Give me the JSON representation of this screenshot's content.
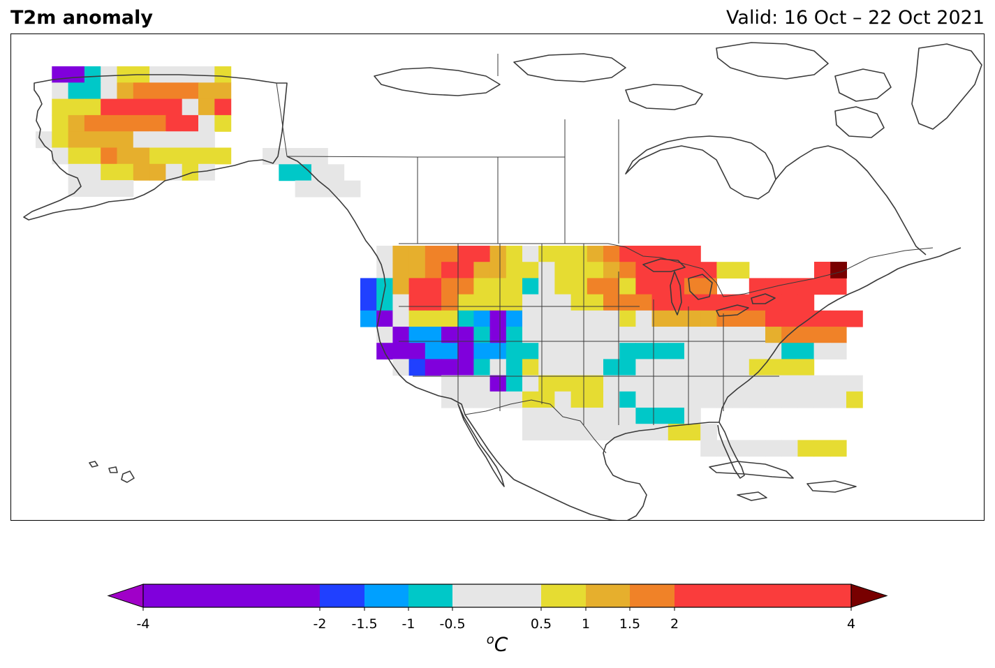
{
  "header": {
    "title": "T2m anomaly",
    "valid": "Valid: 16 Oct – 22 Oct 2021"
  },
  "colorbar": {
    "unit_base": "C",
    "unit_sup": "o",
    "boundaries": [
      -4,
      -2,
      -1.5,
      -1,
      -0.5,
      0.5,
      1,
      1.5,
      2,
      4
    ],
    "tick_labels": [
      "-4",
      "-2",
      "-1.5",
      "-1",
      "-0.5",
      "0.5",
      "1",
      "1.5",
      "2",
      "4"
    ],
    "colors": [
      "#8000dc",
      "#2040ff",
      "#00a0ff",
      "#00c8c8",
      "#e6e6e6",
      "#e6dc32",
      "#e6af2d",
      "#f08228",
      "#fa3c3c"
    ],
    "under_color": "#a000c8",
    "over_color": "#780000"
  },
  "chart_data": {
    "type": "heatmap",
    "title": "T2m anomaly",
    "subtitle": "Valid: 16 Oct – 22 Oct 2021",
    "region": "North America",
    "unit": "°C",
    "legend_position": "bottom",
    "category_colors": {
      "V": "#8000dc",
      "B": "#2040ff",
      "L": "#00a0ff",
      "T": "#00c8c8",
      "G": "#e6e6e6",
      "Y": "#e6dc32",
      "O": "#e6af2d",
      "R": "#f08228",
      "E": "#fa3c3c",
      "D": "#780000"
    },
    "category_ranges": {
      "V": "-4 to -2",
      "B": "-2 to -1.5",
      "L": "-1.5 to -1",
      "T": "-1 to -0.5",
      "G": "-0.5 to 0.5",
      "Y": "0.5 to 1",
      "O": "1 to 1.5",
      "R": "1.5 to 2",
      "E": "2 to 4",
      "D": "> 4"
    },
    "cell_size_deg": 2.5,
    "regions": [
      {
        "name": "Alaska",
        "lon_start": -170,
        "lat_top": 72.5,
        "rows": [
          "VVTGYYGGGGY",
          "GTTGORRRROO",
          "YYYEEEEEGOE",
          "YORRRRREEGY",
          "GYOOOOGGGGG",
          "GYYROOYYYYY",
          "GGYYOOGYG",
          "GGGG"
        ],
        "row_offsets": [
          1,
          1,
          1,
          1,
          0,
          1,
          2,
          2
        ]
      },
      {
        "name": "Southeast Alaska / British Columbia coast",
        "lon_start": -135,
        "lat_top": 60,
        "rows": [
          "GGGG",
          "TTGG",
          "GGGG"
        ],
        "row_offsets": [
          0,
          1,
          2
        ]
      },
      {
        "name": "Contiguous United States",
        "lon_start": -125,
        "lat_top": 50,
        "rows": [
          "GOORREEOYGYYYOREEEEE",
          "GOOREEOOYYGYYYOREEEEEYY",
          "BTOEERRYYYTGYYRRYEEERR..EEEEEE",
          "BTGEERYYYYGGGYYRRREEEEEEEEEE",
          "LVGYYYTLVLGGGGGGYGOOOORRREEEEEE",
          "GVLLVVTVTGGGGGGGGGGGGGGGORRRR",
          "VVVLLVLLTTGGGGGTTTTGGGGGGTTGG",
          "GBVVVTGTYGGGGTTGGGGGGGYYYY",
          "GGGVTGYYYYGGGGGGGGGGGGGGGG",
          "GGGGGYYGYYGTGGGGGGGGGGGGGY",
          "GGGGGGGTTTG",
          "GGGGGGGGGYYG",
          "GGGGGGYYY"
        ],
        "row_offsets": [
          1,
          1,
          0,
          0,
          0,
          1,
          1,
          2,
          5,
          5,
          10,
          10,
          21
        ]
      },
      {
        "name": "Maine",
        "lon_start": -70,
        "lat_top": 47.5,
        "rows": [
          "ED"
        ],
        "row_offsets": [
          0
        ]
      }
    ]
  }
}
